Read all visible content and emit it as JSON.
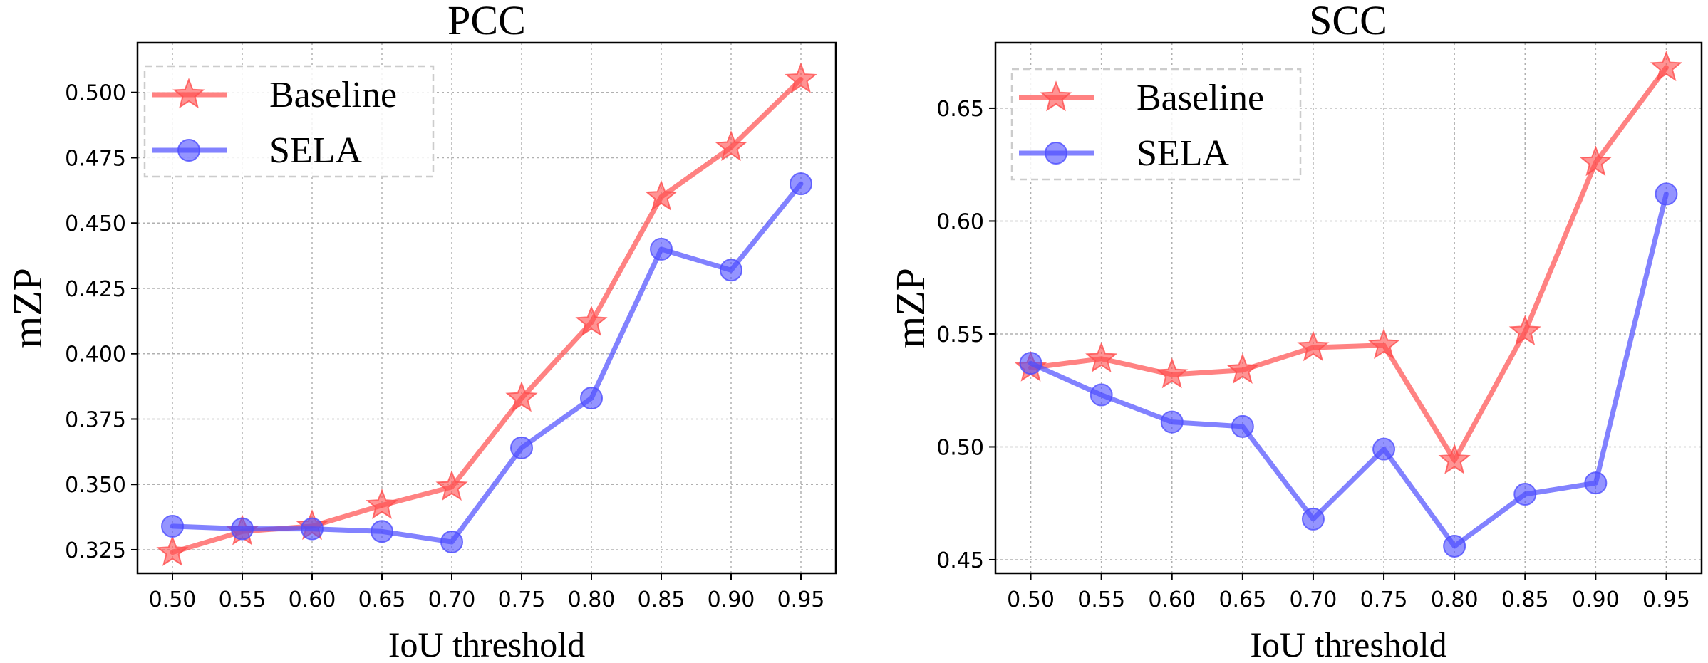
{
  "chart_data": [
    {
      "type": "line",
      "title": "PCC",
      "xlabel": "IoU threshold",
      "ylabel": "mZP",
      "x": [
        0.5,
        0.55,
        0.6,
        0.65,
        0.7,
        0.75,
        0.8,
        0.85,
        0.9,
        0.95
      ],
      "x_tick_labels": [
        "0.50",
        "0.55",
        "0.60",
        "0.65",
        "0.70",
        "0.75",
        "0.80",
        "0.85",
        "0.90",
        "0.95"
      ],
      "y_ticks": [
        0.325,
        0.35,
        0.375,
        0.4,
        0.425,
        0.45,
        0.475,
        0.5
      ],
      "y_tick_labels": [
        "0.325",
        "0.350",
        "0.375",
        "0.400",
        "0.425",
        "0.450",
        "0.475",
        "0.500"
      ],
      "xlim": [
        0.475,
        0.975
      ],
      "ylim": [
        0.316,
        0.519
      ],
      "grid": true,
      "legend_position": "top-left",
      "series": [
        {
          "name": "Baseline",
          "marker": "star",
          "color": "#ff4d4d",
          "values": [
            0.324,
            0.332,
            0.334,
            0.342,
            0.349,
            0.383,
            0.412,
            0.46,
            0.479,
            0.505
          ]
        },
        {
          "name": "SELA",
          "marker": "circle",
          "color": "#4d4dff",
          "values": [
            0.334,
            0.333,
            0.333,
            0.332,
            0.328,
            0.364,
            0.383,
            0.44,
            0.432,
            0.465
          ]
        }
      ]
    },
    {
      "type": "line",
      "title": "SCC",
      "xlabel": "IoU threshold",
      "ylabel": "mZP",
      "x": [
        0.5,
        0.55,
        0.6,
        0.65,
        0.7,
        0.75,
        0.8,
        0.85,
        0.9,
        0.95
      ],
      "x_tick_labels": [
        "0.50",
        "0.55",
        "0.60",
        "0.65",
        "0.70",
        "0.75",
        "0.80",
        "0.85",
        "0.90",
        "0.95"
      ],
      "y_ticks": [
        0.45,
        0.5,
        0.55,
        0.6,
        0.65
      ],
      "y_tick_labels": [
        "0.45",
        "0.50",
        "0.55",
        "0.60",
        "0.65"
      ],
      "xlim": [
        0.475,
        0.975
      ],
      "ylim": [
        0.444,
        0.679
      ],
      "grid": true,
      "legend_position": "top-left",
      "series": [
        {
          "name": "Baseline",
          "marker": "star",
          "color": "#ff4d4d",
          "values": [
            0.535,
            0.539,
            0.532,
            0.534,
            0.544,
            0.545,
            0.494,
            0.551,
            0.626,
            0.668
          ]
        },
        {
          "name": "SELA",
          "marker": "circle",
          "color": "#4d4dff",
          "values": [
            0.537,
            0.523,
            0.511,
            0.509,
            0.468,
            0.499,
            0.456,
            0.479,
            0.484,
            0.612
          ]
        }
      ]
    }
  ]
}
